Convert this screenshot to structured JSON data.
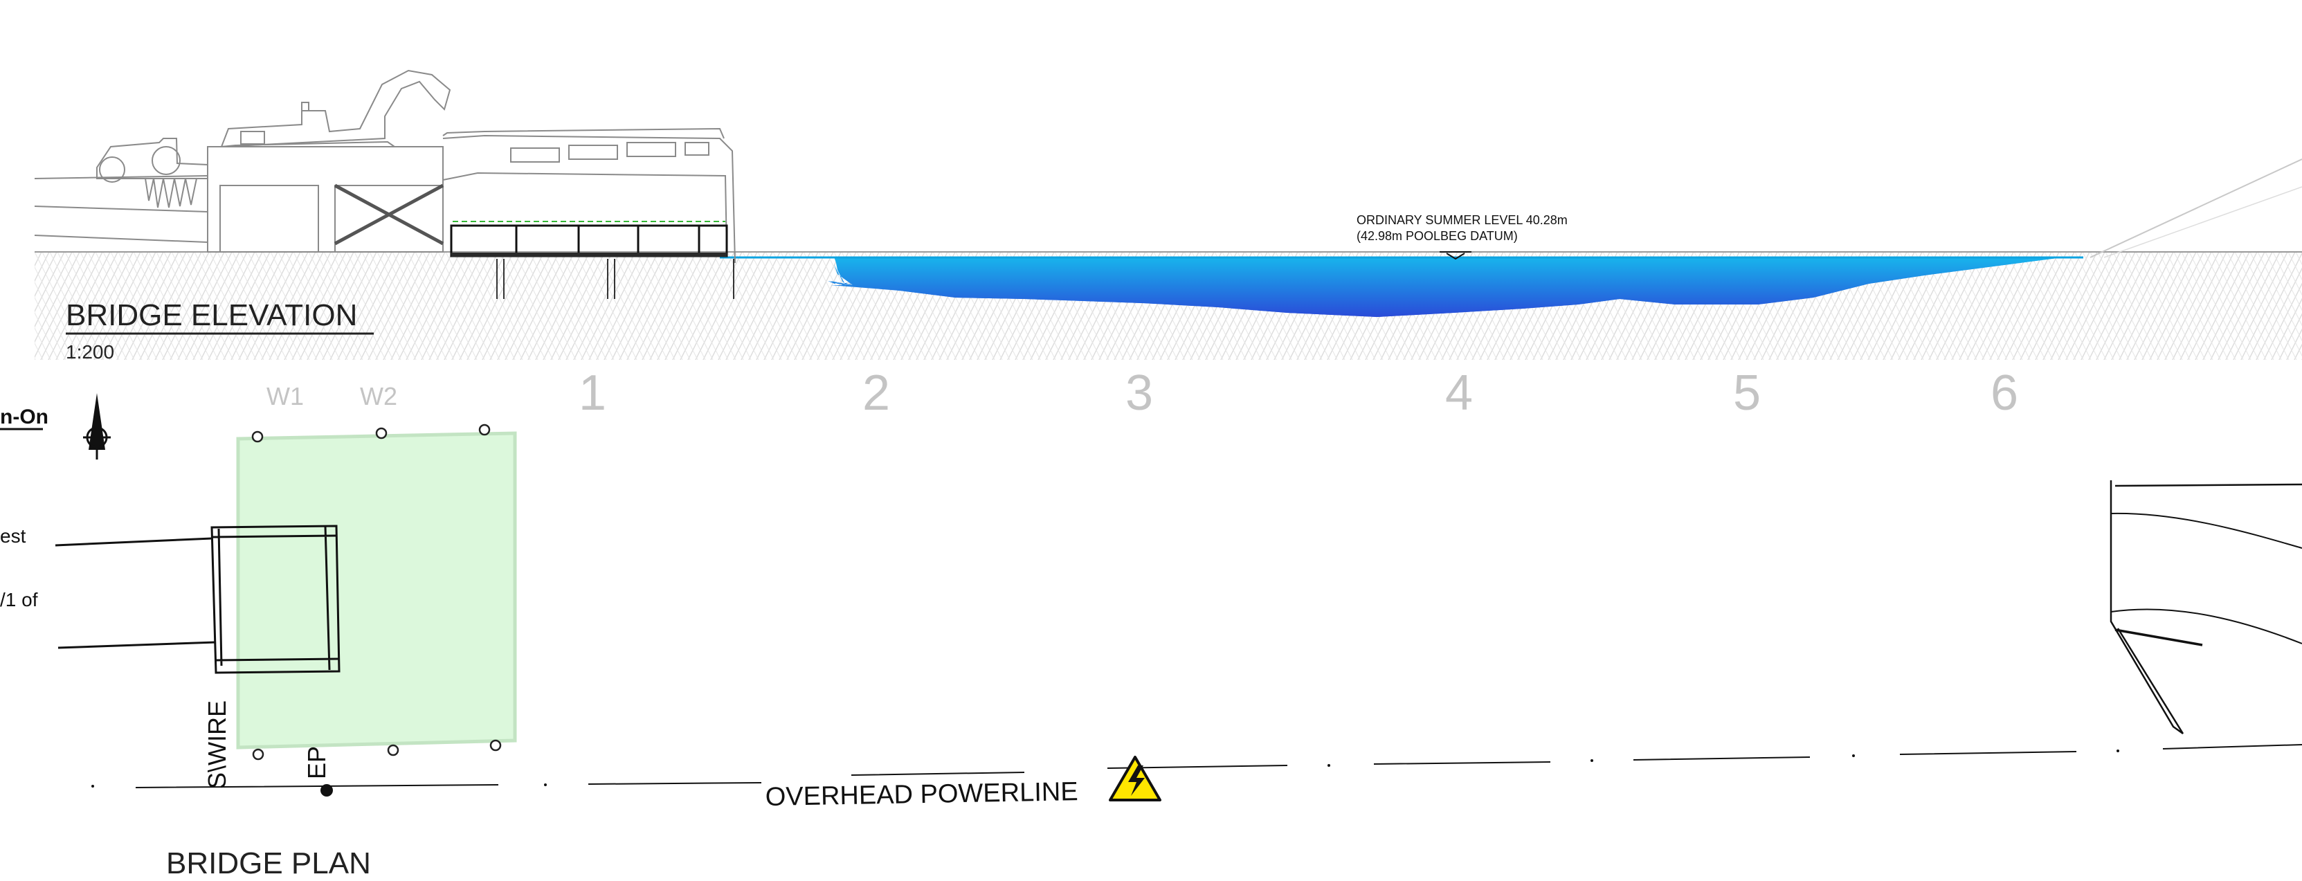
{
  "elevation": {
    "title": "BRIDGE ELEVATION",
    "scale": "1:200",
    "water_level_line1": "ORDINARY SUMMER LEVEL 40.28m",
    "water_level_line2": "(42.98m POOLBEG DATUM)"
  },
  "plan": {
    "title": "BRIDGE PLAN",
    "grid_labels": [
      "W1",
      "W2",
      "1",
      "2",
      "3",
      "4",
      "5",
      "6"
    ],
    "left_note_fragments": [
      "n-On",
      "est",
      "/1 of"
    ],
    "wire_label": "S\\WIRE",
    "ep_label": "EP",
    "powerline_label": "OVERHEAD POWERLINE"
  },
  "colors": {
    "water_top": "#18b4ec",
    "water_bottom": "#2a4bd8",
    "platform_fill": "#dcf8dc",
    "platform_edge": "#c3e4c3",
    "hazard": "#ffe600",
    "grid_label": "#c4c4c4"
  },
  "icons": [
    "north-arrow-icon",
    "electrical-hazard-icon"
  ]
}
